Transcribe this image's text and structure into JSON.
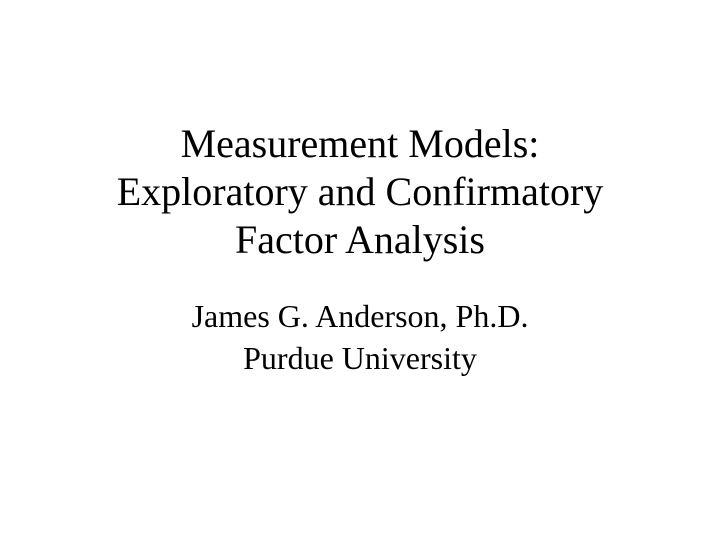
{
  "slide": {
    "title": {
      "line1": "Measurement Models:",
      "line2": "Exploratory and Confirmatory",
      "line3": "Factor Analysis",
      "fontsize": 40,
      "fontweight": "normal",
      "color": "#000000"
    },
    "subtitle": {
      "line1": "James G. Anderson, Ph.D.",
      "line2": "Purdue University",
      "fontsize": 32,
      "fontweight": "normal",
      "color": "#000000"
    },
    "background_color": "#ffffff",
    "font_family": "Times New Roman"
  }
}
